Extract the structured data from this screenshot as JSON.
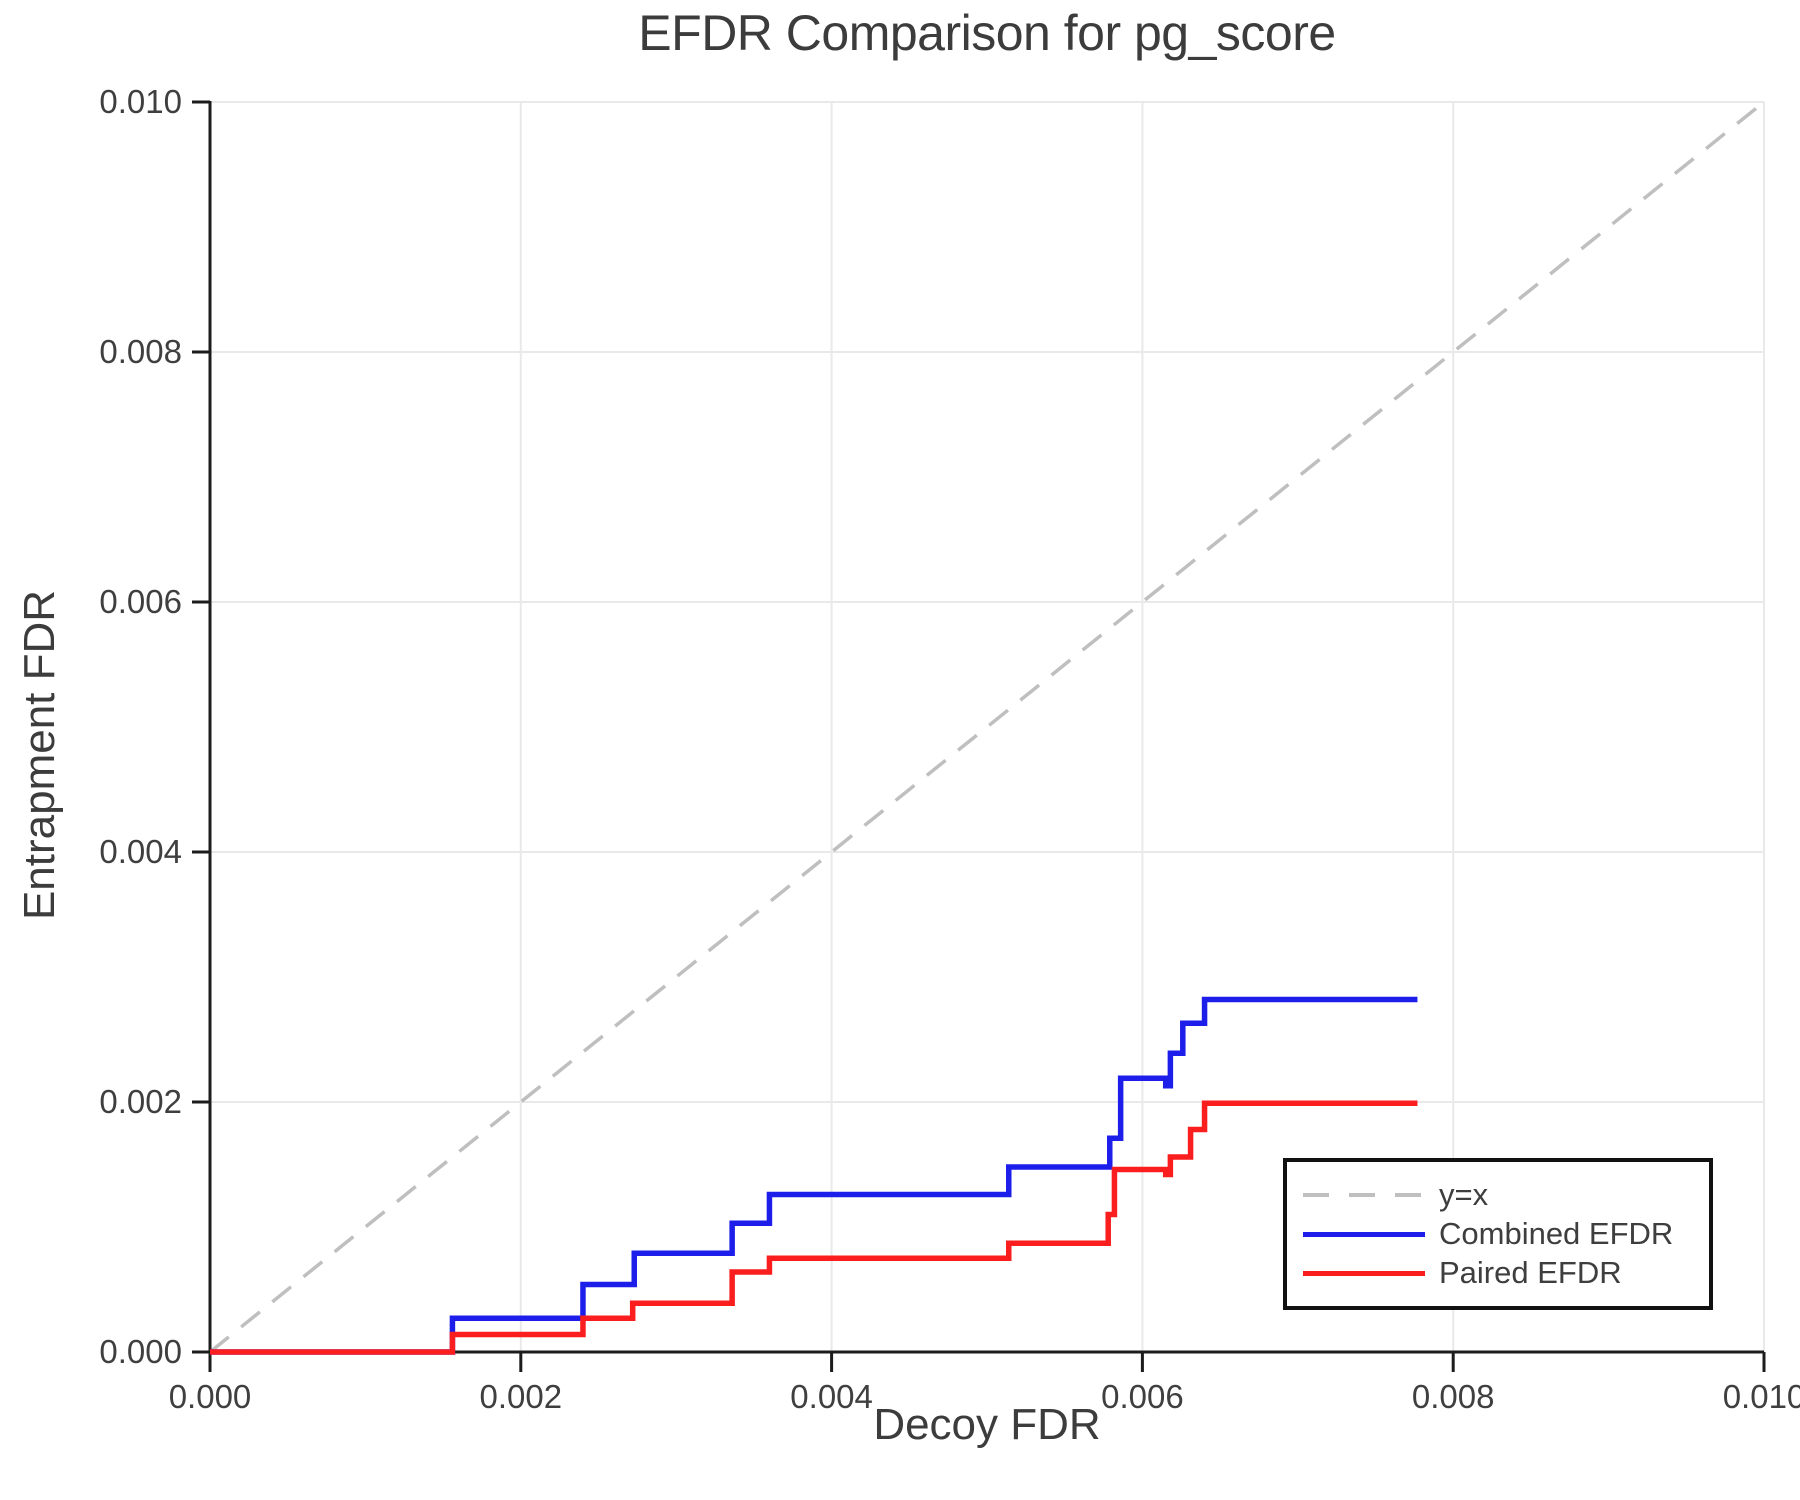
{
  "chart_data": {
    "type": "line",
    "title": "EFDR Comparison for pg_score",
    "xlabel": "Decoy FDR",
    "ylabel": "Entrapment FDR",
    "xlim": [
      0.0,
      0.01
    ],
    "ylim": [
      0.0,
      0.01
    ],
    "grid": true,
    "legend_position": "lower right",
    "xticks": {
      "values": [
        0.0,
        0.002,
        0.004,
        0.006,
        0.008,
        0.01
      ],
      "labels": [
        "0.000",
        "0.002",
        "0.004",
        "0.006",
        "0.008",
        "0.010"
      ]
    },
    "yticks": {
      "values": [
        0.0,
        0.002,
        0.004,
        0.006,
        0.008,
        0.01
      ],
      "labels": [
        "0.000",
        "0.002",
        "0.004",
        "0.006",
        "0.008",
        "0.010"
      ]
    },
    "reference_line": {
      "name": "y=x",
      "style": "dashed",
      "color": "#bfbfbf",
      "from": [
        0.0,
        0.0
      ],
      "to": [
        0.01,
        0.01
      ]
    },
    "series": [
      {
        "name": "Combined EFDR",
        "color": "#1e1eeb",
        "step": "post",
        "points": [
          [
            0.0,
            0.0
          ],
          [
            0.00156,
            0.00027
          ],
          [
            0.0024,
            0.00054
          ],
          [
            0.00273,
            0.00079
          ],
          [
            0.00336,
            0.00103
          ],
          [
            0.0036,
            0.00126
          ],
          [
            0.00514,
            0.00148
          ],
          [
            0.00579,
            0.00171
          ],
          [
            0.00586,
            0.00219
          ],
          [
            0.00615,
            0.00213
          ],
          [
            0.00618,
            0.00239
          ],
          [
            0.00626,
            0.00263
          ],
          [
            0.0064,
            0.00282
          ],
          [
            0.00777,
            0.00282
          ]
        ]
      },
      {
        "name": "Paired EFDR",
        "color": "#fa1e1e",
        "step": "post",
        "points": [
          [
            0.0,
            0.0
          ],
          [
            0.00156,
            0.00014
          ],
          [
            0.0024,
            0.00027
          ],
          [
            0.00272,
            0.00039
          ],
          [
            0.00336,
            0.00064
          ],
          [
            0.0036,
            0.00075
          ],
          [
            0.00514,
            0.00087
          ],
          [
            0.00578,
            0.0011
          ],
          [
            0.00582,
            0.00146
          ],
          [
            0.00615,
            0.00142
          ],
          [
            0.00618,
            0.00156
          ],
          [
            0.00631,
            0.00178
          ],
          [
            0.0064,
            0.00199
          ],
          [
            0.00777,
            0.00199
          ]
        ]
      }
    ]
  }
}
